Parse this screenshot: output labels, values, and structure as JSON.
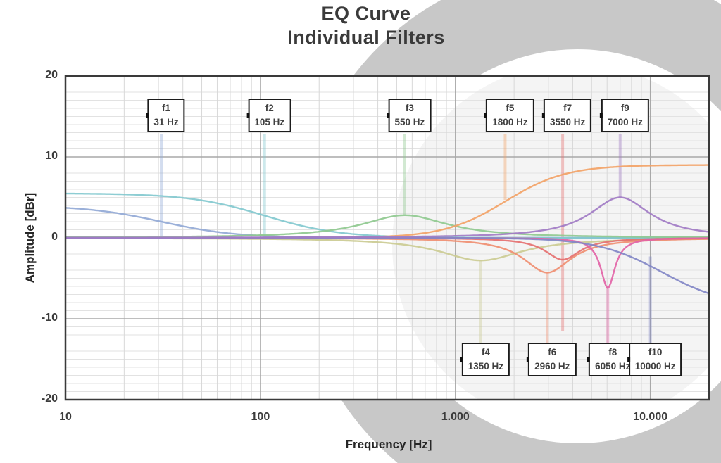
{
  "title": {
    "line1": "EQ Curve",
    "line2": "Individual Filters"
  },
  "chart_data": {
    "type": "line",
    "title": "EQ Curve — Individual Filters",
    "x_axis": {
      "label": "Frequency [Hz]",
      "scale": "log",
      "min": 10,
      "max": 20000,
      "ticks": [
        {
          "value": 10,
          "label": "10"
        },
        {
          "value": 100,
          "label": "100"
        },
        {
          "value": 1000,
          "label": "1.000"
        },
        {
          "value": 10000,
          "label": "10.000"
        }
      ]
    },
    "y_axis": {
      "label": "Amplitude  [dBr]",
      "min": -20,
      "max": 20,
      "minor_step_db": 1,
      "major_step_db": 10,
      "ticks": [
        {
          "value": 20,
          "label": "20"
        },
        {
          "value": 10,
          "label": "10"
        },
        {
          "value": 0,
          "label": "0"
        },
        {
          "value": -10,
          "label": "-10"
        },
        {
          "value": -20,
          "label": "-20"
        }
      ]
    },
    "grid": {
      "minor_h_color": "#e2e2e2",
      "minor_v_color": "#d8d8d8",
      "major_color": "#a8a8a8",
      "border_color": "#3a3a3a"
    },
    "watermark": {
      "ring_color": "#c8c8c8",
      "inner_disc_tint": "rgba(110,110,110,0.08)"
    },
    "filters": [
      {
        "name": "f1",
        "freq_hz": 31,
        "freq_label": "31 Hz",
        "filter_type": "low-shelf",
        "gain_db": 4.0,
        "steepness": 2.6,
        "color": "#92a9d6",
        "label_row": "top",
        "marker_to_db": 0
      },
      {
        "name": "f2",
        "freq_hz": 105,
        "freq_label": "105 Hz",
        "filter_type": "low-shelf",
        "gain_db": 5.5,
        "steepness": 2.6,
        "color": "#83c9cf",
        "label_row": "top",
        "marker_to_db": 0
      },
      {
        "name": "f3",
        "freq_hz": 550,
        "freq_label": "550 Hz",
        "filter_type": "bell",
        "gain_db": 2.8,
        "width_dec": 0.27,
        "color": "#8fc98f",
        "label_row": "top",
        "marker_to_db": 2.8
      },
      {
        "name": "f4",
        "freq_hz": 1350,
        "freq_label": "1350 Hz",
        "filter_type": "bell",
        "gain_db": -2.8,
        "width_dec": 0.26,
        "color": "#cbcb93",
        "label_row": "bottom",
        "marker_to_db": -2.8
      },
      {
        "name": "f5",
        "freq_hz": 1800,
        "freq_label": "1800 Hz",
        "filter_type": "high-shelf",
        "gain_db": 9.0,
        "steepness": 3.2,
        "color": "#f2a266",
        "label_row": "top",
        "marker_to_db": 4.7
      },
      {
        "name": "f6",
        "freq_hz": 2960,
        "freq_label": "2960 Hz",
        "filter_type": "bell",
        "gain_db": -4.3,
        "width_dec": 0.15,
        "color": "#ef8e71",
        "label_row": "bottom",
        "marker_to_db": -4.3
      },
      {
        "name": "f7",
        "freq_hz": 3550,
        "freq_label": "3550 Hz",
        "filter_type": "bell",
        "gain_db": -2.7,
        "width_dec": 0.11,
        "color": "#e57070",
        "label_row": "top",
        "marker_to_db": -11.5
      },
      {
        "name": "f8",
        "freq_hz": 6050,
        "freq_label": "6050 Hz",
        "filter_type": "bell",
        "gain_db": -6.2,
        "width_dec": 0.045,
        "color": "#e263a6",
        "label_row": "bottom",
        "marker_to_db": -6.2
      },
      {
        "name": "f9",
        "freq_hz": 7000,
        "freq_label": "7000 Hz",
        "filter_type": "bell",
        "gain_db": 5.0,
        "width_dec": 0.19,
        "color": "#a17bc4",
        "label_row": "top",
        "marker_to_db": 5.0
      },
      {
        "name": "f10",
        "freq_hz": 10000,
        "freq_label": "10000 Hz",
        "filter_type": "high-shelf",
        "gain_db": -8.5,
        "shelf_fc": 11500,
        "steepness": 3.0,
        "color": "#8287c6",
        "label_row": "bottom",
        "marker_to_db": -2.3
      }
    ]
  }
}
